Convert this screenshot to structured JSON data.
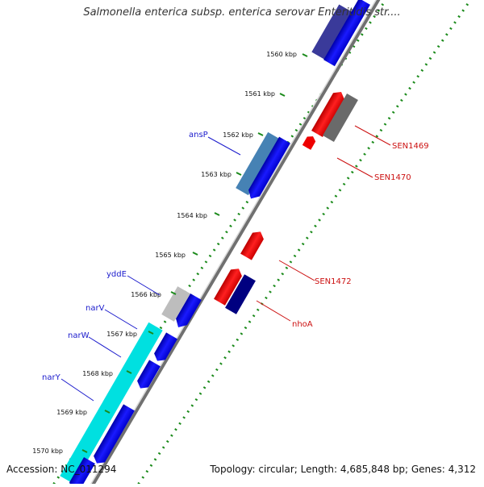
{
  "title": "Salmonella enterica subsp. enterica serovar Enteritidis str....",
  "footer": {
    "accession": "Accession: NC_011294",
    "summary": "Topology: circular; Length: 4,685,848 bp; Genes: 4,312"
  },
  "ticks": [
    "1560 kbp",
    "1561 kbp",
    "1562 kbp",
    "1563 kbp",
    "1564 kbp",
    "1565 kbp",
    "1566 kbp",
    "1567 kbp",
    "1568 kbp",
    "1569 kbp",
    "1570 kbp"
  ],
  "genes_left": [
    "ansP",
    "yddE",
    "narV",
    "narW",
    "narY"
  ],
  "genes_right": [
    "SEN1469",
    "SEN1470",
    "SEN1472",
    "nhoA"
  ],
  "colors": {
    "forward_gene": "#0000ee",
    "reverse_gene": "#ee0000",
    "label_left": "#1a1acc",
    "label_right": "#cc1111",
    "tick_green": "#1a8a1a",
    "backbone": "#808080"
  }
}
